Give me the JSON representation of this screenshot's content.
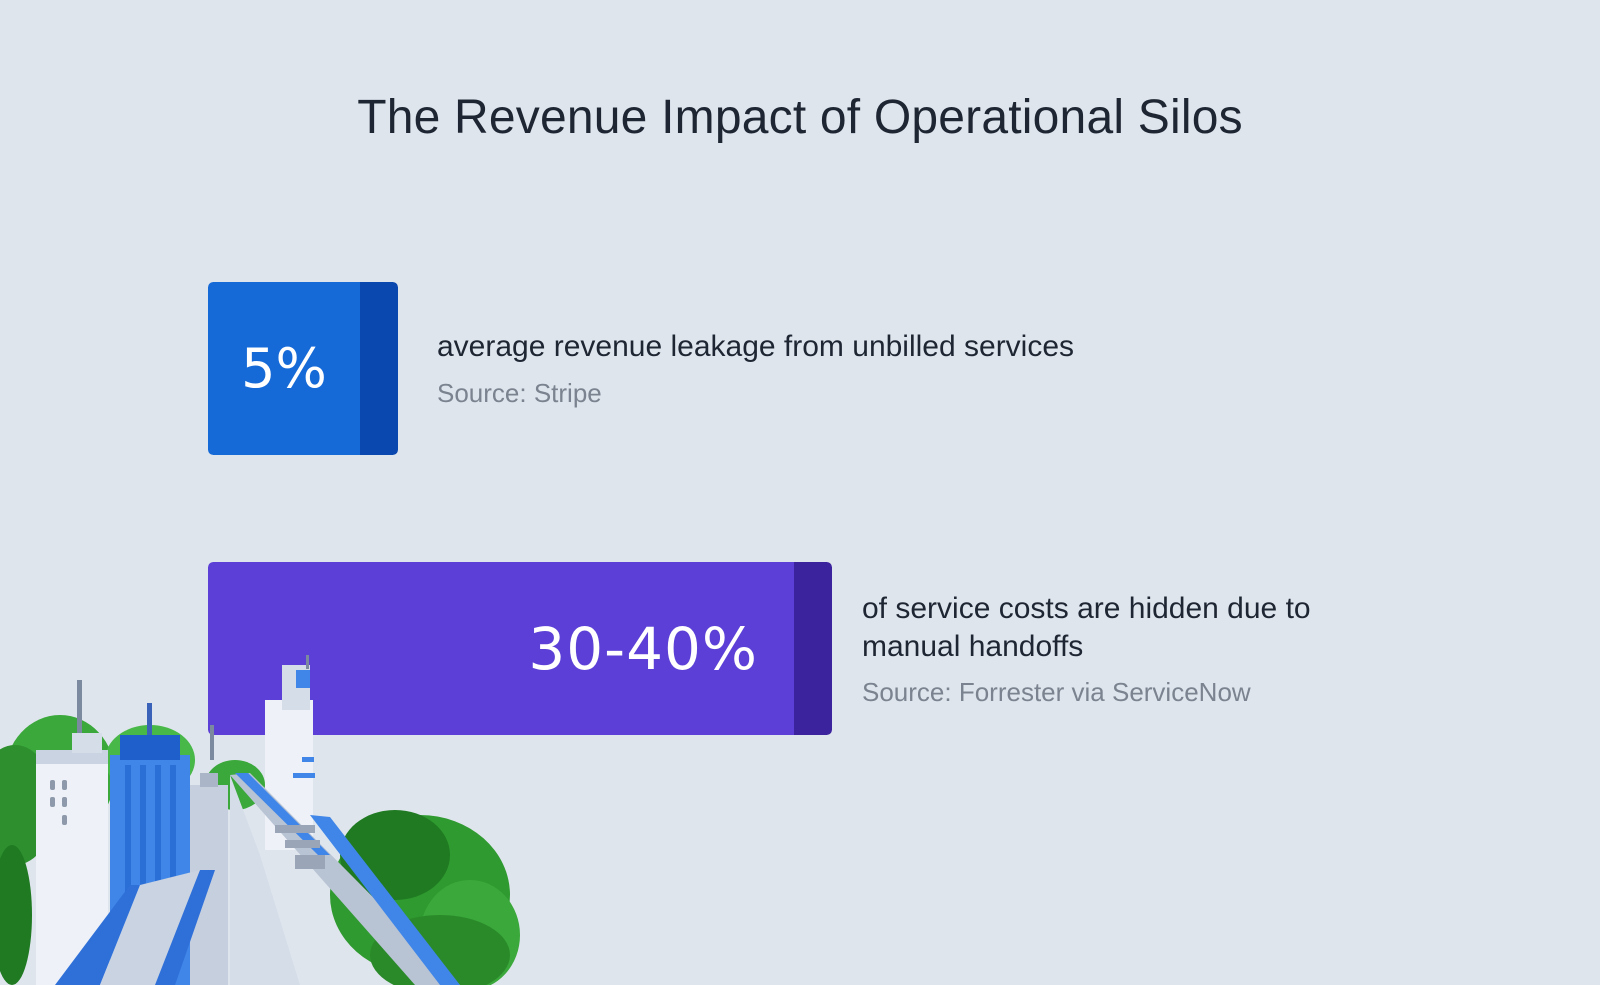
{
  "title": "The Revenue Impact of Operational Silos",
  "colors": {
    "background": "#dfe5ed",
    "stat1": "#166ad8",
    "stat1_edge": "#0a47ae",
    "stat2": "#5b3fd6",
    "stat2_edge": "#3c239e"
  },
  "chart_data": {
    "type": "bar",
    "title": "The Revenue Impact of Operational Silos",
    "orientation": "horizontal",
    "categories": [
      "average revenue leakage from unbilled services",
      "of service costs are hidden due to manual handoffs"
    ],
    "values": [
      5,
      35
    ],
    "value_labels": [
      "5%",
      "30-40%"
    ],
    "ranges": [
      [
        5,
        5
      ],
      [
        30,
        40
      ]
    ],
    "unit": "%",
    "sources": [
      "Source: Stripe",
      "Source: Forrester via ServiceNow"
    ],
    "grid": false,
    "legend": "none"
  },
  "stats": [
    {
      "value": "5%",
      "description": "average revenue leakage from unbilled services",
      "source": "Source: Stripe"
    },
    {
      "value": "30-40%",
      "description": "of service costs are hidden due to manual handoffs",
      "source": "Source: Forrester via ServiceNow"
    }
  ],
  "illustration": "city-skyline-illustration"
}
